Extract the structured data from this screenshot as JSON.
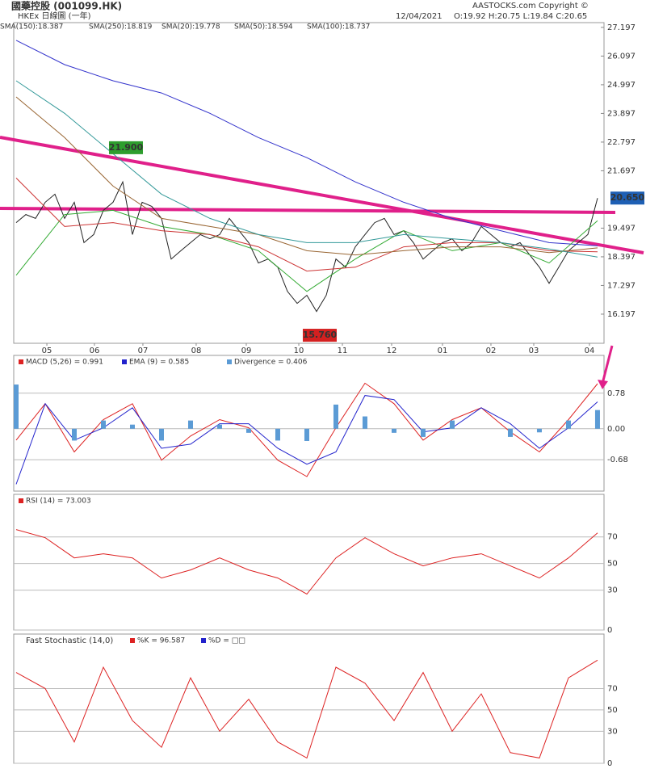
{
  "header": {
    "title": "國藥控股 (001099.HK)",
    "subtitle": "HKEx 日線圖 (一年)",
    "copyright": "AASTOCKS.com Copyright ©",
    "date": "12/04/2021",
    "ohlc": "O:19.92 H:20.75 L:19.84 C:20.65"
  },
  "chart_data": [
    {
      "type": "line",
      "xlim": [
        -0.25,
        60.67
      ],
      "ylim": [
        15.08,
        27.38
      ],
      "yticks": [
        16.197,
        17.297,
        18.397,
        19.497,
        21.697,
        22.797,
        23.897,
        24.997,
        26.097,
        27.197
      ],
      "xticks": [
        {
          "value": 3.17,
          "label": "05"
        },
        {
          "value": 8.08,
          "label": "06"
        },
        {
          "value": 13.08,
          "label": "07"
        },
        {
          "value": 18.58,
          "label": "08"
        },
        {
          "value": 23.75,
          "label": "09"
        },
        {
          "value": 29.17,
          "label": "10"
        },
        {
          "value": 33.67,
          "label": "11"
        },
        {
          "value": 38.75,
          "label": "12"
        },
        {
          "value": 44,
          "label": "01"
        },
        {
          "value": 49,
          "label": "02"
        },
        {
          "value": 53.42,
          "label": "03"
        },
        {
          "value": 59.17,
          "label": "04"
        }
      ],
      "series": [
        {
          "color": "#222222",
          "x": [
            0,
            1,
            2,
            3,
            4,
            5,
            6,
            7,
            8,
            9,
            10,
            11,
            12,
            13,
            14,
            15,
            16,
            17,
            18,
            19,
            20,
            21,
            22,
            23,
            24,
            25,
            26,
            27,
            28,
            29,
            30,
            31,
            32,
            33,
            34,
            35,
            36,
            37,
            38,
            39,
            40,
            41,
            42,
            43,
            44,
            45,
            46,
            47,
            48,
            49,
            50,
            51,
            52,
            53,
            54,
            55,
            56,
            57,
            58,
            59,
            60
          ],
          "values": [
            19.71,
            20.02,
            19.87,
            20.49,
            20.8,
            19.87,
            20.49,
            18.94,
            19.25,
            20.18,
            20.49,
            21.27,
            19.25,
            20.49,
            20.33,
            19.87,
            18.31,
            18.63,
            18.94,
            19.25,
            19.09,
            19.25,
            19.87,
            19.4,
            18.94,
            18.16,
            18.31,
            18.0,
            17.07,
            16.61,
            16.92,
            16.3,
            16.92,
            18.31,
            18.0,
            18.78,
            19.25,
            19.71,
            19.87,
            19.25,
            19.4,
            18.94,
            18.31,
            18.63,
            18.94,
            19.09,
            18.63,
            18.94,
            19.56,
            19.25,
            18.94,
            18.78,
            18.94,
            18.47,
            18.0,
            17.38,
            18.0,
            18.63,
            18.94,
            19.25,
            20.65
          ]
        },
        {
          "name": "SMA(250):18.819",
          "color": "#3333cc",
          "x": [
            0,
            5,
            10,
            15,
            20,
            25,
            30,
            35,
            40,
            45,
            50,
            55,
            60
          ],
          "values": [
            26.7,
            25.77,
            25.15,
            24.68,
            23.9,
            22.97,
            22.2,
            21.27,
            20.49,
            19.87,
            19.4,
            18.94,
            18.82
          ]
        },
        {
          "name": "SMA(20):19.778",
          "color": "#33aa33",
          "x": [
            0,
            5,
            10,
            15,
            20,
            25,
            30,
            35,
            40,
            45,
            50,
            55,
            60
          ],
          "values": [
            17.69,
            20.02,
            20.18,
            19.56,
            19.25,
            18.63,
            17.07,
            18.31,
            19.4,
            18.63,
            18.94,
            18.16,
            19.78
          ]
        },
        {
          "name": "SMA(50):18.594",
          "color": "#cc3333",
          "x": [
            0,
            5,
            10,
            15,
            20,
            25,
            30,
            35,
            40,
            45,
            50,
            55,
            60
          ],
          "values": [
            21.42,
            19.56,
            19.71,
            19.4,
            19.25,
            18.78,
            17.85,
            18.0,
            18.78,
            18.94,
            18.94,
            18.63,
            18.59
          ]
        },
        {
          "name": "SMA(100):18.737",
          "color": "#996633",
          "x": [
            0,
            5,
            10,
            15,
            20,
            25,
            30,
            35,
            40,
            45,
            50,
            55,
            60
          ],
          "values": [
            24.53,
            22.97,
            21.11,
            19.87,
            19.56,
            19.25,
            18.63,
            18.47,
            18.63,
            18.78,
            18.78,
            18.56,
            18.74
          ]
        },
        {
          "name": "SMA(150):18.387",
          "color": "#339999",
          "x": [
            0,
            5,
            10,
            15,
            20,
            25,
            30,
            35,
            40,
            45,
            50,
            55,
            60
          ],
          "values": [
            25.15,
            23.9,
            22.35,
            20.8,
            19.87,
            19.25,
            18.94,
            18.94,
            19.25,
            19.09,
            18.94,
            18.7,
            18.39
          ]
        }
      ],
      "annotations": [
        {
          "label": "21.900",
          "value": 21.9,
          "x": 11.25,
          "color": "#2e9e2e"
        },
        {
          "label": "15.760",
          "value": 15.76,
          "x": 31.25,
          "color": "#d42020"
        },
        {
          "label": "20.650",
          "value": 20.65,
          "x": 60,
          "color": "#1e5fb4"
        }
      ]
    },
    {
      "type": "line",
      "xlim": [
        -0.25,
        60.67
      ],
      "ylim": [
        -1.37,
        1.61
      ],
      "yticks": [
        -0.68,
        {
          "value": 0,
          "label": "0.00"
        },
        0.78
      ],
      "grid": true,
      "series": [
        {
          "name": "MACD (5,26) = 0.991",
          "color": "#dd2222",
          "x": [
            0,
            3,
            6,
            9,
            12,
            15,
            18,
            21,
            24,
            27,
            30,
            33,
            36,
            39,
            42,
            45,
            48,
            51,
            54,
            57,
            60
          ],
          "values": [
            -0.25,
            0.55,
            -0.51,
            0.2,
            0.55,
            -0.69,
            -0.16,
            0.2,
            0.02,
            -0.69,
            -1.05,
            0.02,
            1.0,
            0.55,
            -0.25,
            0.2,
            0.46,
            -0.07,
            -0.51,
            0.2,
            0.99
          ]
        },
        {
          "name": "EMA (9) = 0.585",
          "color": "#2222cc",
          "x": [
            0,
            3,
            6,
            9,
            12,
            15,
            18,
            21,
            24,
            27,
            30,
            33,
            36,
            39,
            42,
            45,
            48,
            51,
            54,
            57,
            60
          ],
          "values": [
            -1.22,
            0.55,
            -0.25,
            0.02,
            0.46,
            -0.43,
            -0.34,
            0.11,
            0.11,
            -0.43,
            -0.78,
            -0.51,
            0.73,
            0.64,
            -0.07,
            0.02,
            0.46,
            0.11,
            -0.43,
            0.02,
            0.59
          ]
        },
        {
          "name": "Divergence = 0.406",
          "color": "#5b9bd5",
          "type": "bar",
          "x": [
            0,
            3,
            6,
            9,
            12,
            15,
            18,
            21,
            24,
            27,
            30,
            33,
            36,
            39,
            42,
            45,
            48,
            51,
            54,
            57,
            60
          ],
          "values": [
            0.97,
            0,
            -0.26,
            0.18,
            0.09,
            -0.26,
            0.18,
            0.09,
            -0.09,
            -0.26,
            -0.27,
            0.53,
            0.27,
            -0.09,
            -0.18,
            0.18,
            0,
            -0.18,
            -0.08,
            0.18,
            0.41
          ]
        }
      ]
    },
    {
      "type": "line",
      "xlim": [
        -0.25,
        60.67
      ],
      "ylim": [
        0,
        102
      ],
      "yticks": [
        0,
        30,
        50,
        70
      ],
      "grid": true,
      "series": [
        {
          "name": "RSI (14) = 73.003",
          "color": "#dd2222",
          "x": [
            0,
            3,
            6,
            9,
            12,
            15,
            18,
            21,
            24,
            27,
            30,
            33,
            36,
            39,
            42,
            45,
            48,
            51,
            54,
            57,
            60
          ],
          "values": [
            75.5,
            69.4,
            54.2,
            57.3,
            54.2,
            39.1,
            45.2,
            54.2,
            45.2,
            39.1,
            27.0,
            54.2,
            69.4,
            57.3,
            48.2,
            54.2,
            57.3,
            48.2,
            39.1,
            54.2,
            73.0
          ]
        }
      ]
    },
    {
      "type": "line",
      "title": "Fast Stochastic (14,0)",
      "xlim": [
        -0.25,
        60.67
      ],
      "ylim": [
        0,
        121
      ],
      "yticks": [
        0,
        30,
        50,
        70
      ],
      "grid": true,
      "series": [
        {
          "name": "%K = 96.587",
          "color": "#dd2222",
          "x": [
            0,
            3,
            6,
            9,
            12,
            15,
            18,
            21,
            24,
            27,
            30,
            33,
            36,
            39,
            42,
            45,
            48,
            51,
            54,
            57,
            60
          ],
          "values": [
            85,
            70,
            20,
            90,
            40,
            15,
            80,
            30,
            60,
            20,
            5,
            90,
            75,
            40,
            85,
            30,
            65,
            10,
            5,
            80,
            96.59
          ]
        },
        {
          "name": "%D = □□",
          "color": "#2222cc",
          "x": [],
          "values": []
        }
      ]
    }
  ]
}
